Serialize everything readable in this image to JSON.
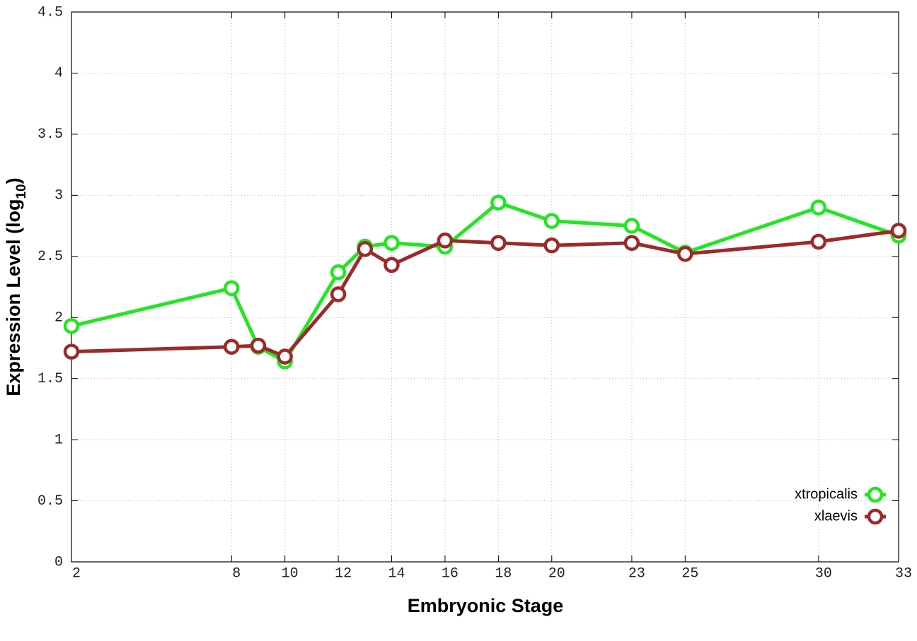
{
  "chart_data": {
    "type": "line",
    "xlabel": "Embryonic Stage",
    "ylabel": [
      "Expression Level (log",
      "10",
      ")"
    ],
    "x": [
      2,
      8,
      9,
      10,
      12,
      13,
      14,
      16,
      18,
      20,
      23,
      25,
      30,
      33
    ],
    "xlim": [
      2,
      33
    ],
    "xticks": [
      2,
      8,
      10,
      12,
      14,
      16,
      18,
      20,
      23,
      25,
      30,
      33
    ],
    "ylim": [
      0,
      4.5
    ],
    "yticks": [
      0,
      0.5,
      1,
      1.5,
      2,
      2.5,
      3,
      3.5,
      4,
      4.5
    ],
    "grid": true,
    "legend": "bottom-right",
    "series": [
      {
        "name": "xtropicalis",
        "color": "#22e622",
        "values": [
          1.93,
          2.24,
          1.76,
          1.64,
          2.37,
          2.58,
          2.61,
          2.58,
          2.94,
          2.79,
          2.75,
          2.53,
          2.9,
          2.67
        ]
      },
      {
        "name": "xlaevis",
        "color": "#9c2a2a",
        "values": [
          1.72,
          1.76,
          1.77,
          1.68,
          2.19,
          2.56,
          2.43,
          2.63,
          2.61,
          2.59,
          2.61,
          2.52,
          2.62,
          2.71
        ]
      }
    ]
  }
}
